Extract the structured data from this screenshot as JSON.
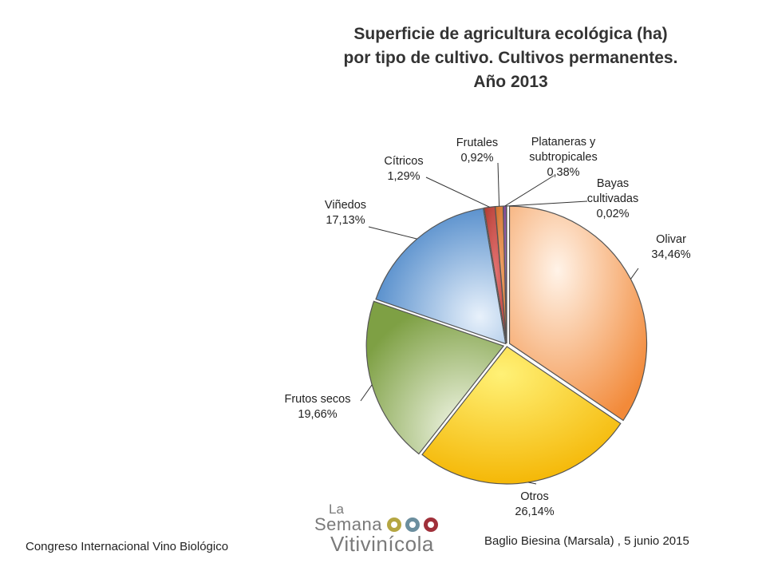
{
  "title": {
    "line1": "Superficie de agricultura ecológica (ha)",
    "line2": "por tipo de cultivo. Cultivos permanentes.",
    "line3": "Año 2013"
  },
  "chart_data": {
    "type": "pie",
    "title": "Superficie de agricultura ecológica (ha) por tipo de cultivo. Cultivos permanentes. Año 2013",
    "slices": [
      {
        "name": "Olivar",
        "value": 34.46,
        "label": "34,46%",
        "color": "#f4a460"
      },
      {
        "name": "Otros",
        "value": 26.14,
        "label": "26,14%",
        "color": "#f5c518"
      },
      {
        "name": "Frutos secos",
        "value": 19.66,
        "label": "19,66%",
        "color": "#8fb050"
      },
      {
        "name": "Viñedos",
        "value": 17.13,
        "label": "17,13%",
        "color": "#5b9bd5"
      },
      {
        "name": "Cítricos",
        "value": 1.29,
        "label": "1,29%",
        "color": "#c0392b"
      },
      {
        "name": "Frutales",
        "value": 0.92,
        "label": "0,92%",
        "color": "#e07b39"
      },
      {
        "name": "Plataneras y subtropicales",
        "value": 0.38,
        "label": "0,38%",
        "color": "#8e44ad"
      },
      {
        "name": "Bayas cultivadas",
        "value": 0.02,
        "label": "0,02%",
        "color": "#2c3e50"
      }
    ],
    "legend": "none",
    "data_labels": "outside"
  },
  "footer": {
    "left": "Congreso Internacional Vino Biológico",
    "right": "Baglio Biesina (Marsala) ,  5 junio 2015"
  },
  "logo": {
    "la": "La",
    "semana": "Semana",
    "vitivinicola": "Vitivinícola"
  }
}
